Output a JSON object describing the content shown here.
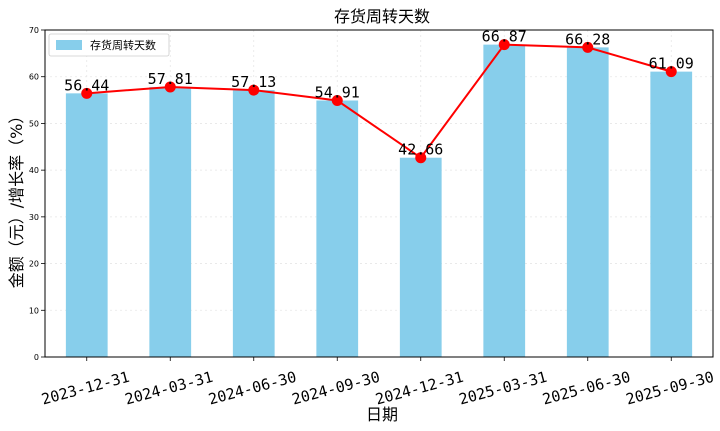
{
  "chart_data": {
    "type": "bar",
    "title": "存货周转天数",
    "xlabel": "日期",
    "ylabel": "金额（元）/增长率（%）",
    "categories": [
      "2023-12-31",
      "2024-03-31",
      "2024-06-30",
      "2024-09-30",
      "2024-12-31",
      "2025-03-31",
      "2025-06-30",
      "2025-09-30"
    ],
    "series": [
      {
        "name": "存货周转天数",
        "type": "bar",
        "values": [
          56.44,
          57.81,
          57.13,
          54.91,
          42.66,
          66.87,
          66.28,
          61.09
        ]
      },
      {
        "type": "line",
        "values": [
          56.44,
          57.81,
          57.13,
          54.91,
          42.66,
          66.87,
          66.28,
          61.09
        ]
      }
    ],
    "data_labels": [
      "56.44",
      "57.81",
      "57.13",
      "54.91",
      "42.66",
      "66.87",
      "66.28",
      "61.09"
    ],
    "ylim": [
      0,
      70
    ],
    "yticks": [
      0,
      10,
      20,
      30,
      40,
      50,
      60,
      70
    ],
    "grid": true,
    "legend": "top-left",
    "colors": {
      "bar": "#87ceeb",
      "line": "#ff0000",
      "marker": "#ff0000"
    }
  }
}
